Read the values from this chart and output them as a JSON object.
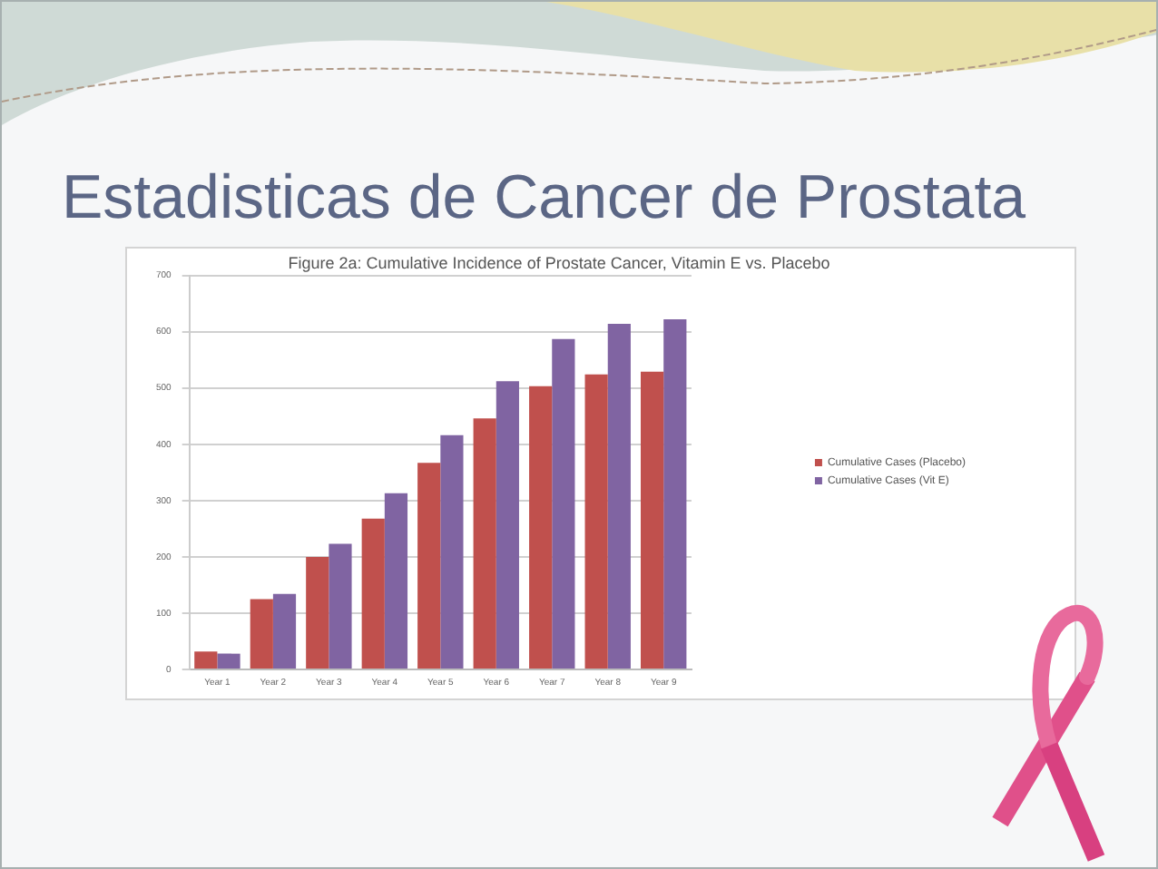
{
  "chart_data": {
    "type": "bar",
    "title": "Estadisticas de Cancer de Prostata",
    "subtitle": "Figure 2a: Cumulative Incidence of Prostate Cancer, Vitamin E vs. Placebo",
    "categories": [
      "Year 1",
      "Year 2",
      "Year 3",
      "Year 4",
      "Year 5",
      "Year 6",
      "Year 7",
      "Year 8",
      "Year 9"
    ],
    "series": [
      {
        "name": "Cumulative Cases (Placebo)",
        "color": "#c0504d",
        "values": [
          32,
          125,
          200,
          268,
          367,
          446,
          503,
          524,
          529
        ]
      },
      {
        "name": "Cumulative Cases (Vit E)",
        "color": "#8064a2",
        "values": [
          28,
          134,
          223,
          313,
          416,
          512,
          587,
          614,
          622
        ]
      }
    ],
    "ylim": [
      0,
      700
    ],
    "yticks": [
      0,
      100,
      200,
      300,
      400,
      500,
      600,
      700
    ],
    "grid": "y",
    "legend": "right"
  }
}
